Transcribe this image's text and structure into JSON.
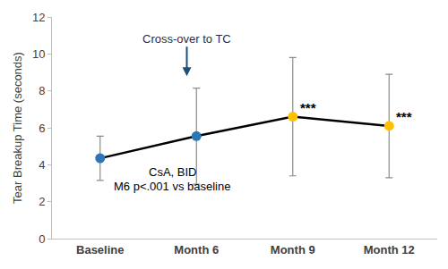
{
  "chart_data": {
    "type": "line",
    "categories": [
      "Baseline",
      "Month 6",
      "Month 9",
      "Month 12"
    ],
    "values": [
      4.35,
      5.55,
      6.6,
      6.1
    ],
    "error": [
      1.2,
      2.6,
      3.2,
      2.8
    ],
    "color": "#000000",
    "colors": [
      "#2e75b6",
      "#2e75b6",
      "#ffc000",
      "#ffc000"
    ],
    "marker": "circle",
    "ylabel": "Tear Breakup Time (seconds)",
    "ylim": [
      0,
      12
    ],
    "yticks": [
      0,
      2,
      4,
      6,
      8,
      10,
      12
    ],
    "grid": false,
    "significance": [
      null,
      null,
      "***",
      "***"
    ],
    "annotations": [
      "Cross-over to TC",
      "CsA, BID",
      "M6 p<.001 vs baseline"
    ]
  }
}
